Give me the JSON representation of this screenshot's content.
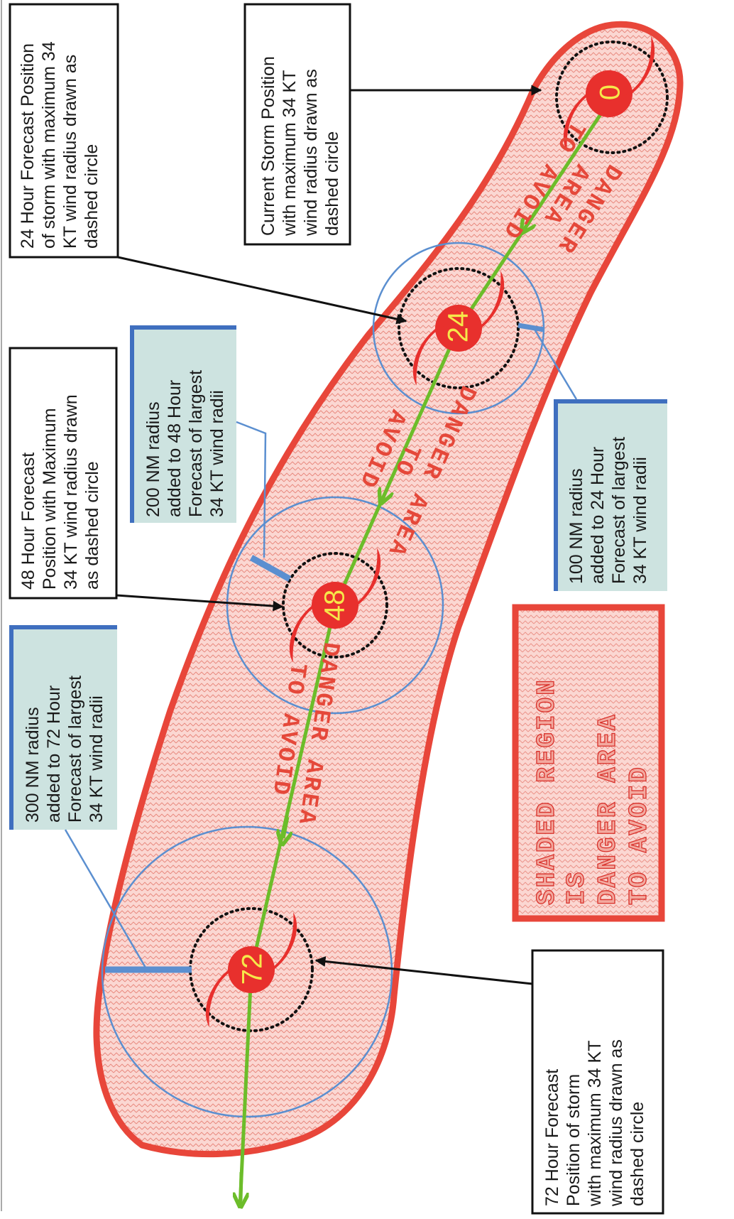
{
  "callouts": {
    "current": [
      "Current Storm Position",
      "with maximum 34 KT",
      "wind radius drawn as",
      "dashed  circle"
    ],
    "h24": [
      "24 Hour Forecast Position",
      "of storm with maximum 34",
      "KT wind radius drawn as",
      "dashed  circle"
    ],
    "h48": [
      "48 Hour Forecast",
      "Position with Maximum",
      "34 KT wind radius drawn",
      "as dashed  circle"
    ],
    "h72": [
      "72 Hour Forecast",
      "Position of storm",
      "with maximum 34 KT",
      "wind radius drawn as",
      "dashed  circle"
    ]
  },
  "radius_notes": {
    "r100": [
      "100 NM radius",
      "added to 24 Hour",
      "Forecast of largest",
      "34 KT wind radii"
    ],
    "r200": [
      "200 NM radius",
      "added to 48 Hour",
      "Forecast of largest",
      "34 KT wind radii"
    ],
    "r300": [
      "300 NM radius",
      "added to 72 Hour",
      "Forecast of largest",
      "34 KT wind radii"
    ]
  },
  "danger_labels": [
    [
      "DANGER",
      "AREA",
      "TO AVOID"
    ],
    [
      "DANGER AREA",
      "TO",
      "AVOID"
    ],
    [
      "DANGER AREA",
      "TO AVOID"
    ]
  ],
  "storm_numbers": [
    "0",
    "24",
    "48",
    "72"
  ],
  "legend": [
    "SHADED REGION",
    "IS",
    "DANGER AREA",
    "TO AVOID"
  ],
  "colors": {
    "danger_fill": "#f8c6c0",
    "danger_outline": "#e8463a",
    "track": "#6cbd2a",
    "radius_circle": "#5b8fd0",
    "callout_blue_fill": "#cde3e0",
    "callout_blue_edge": "#3f6fbf",
    "storm_symbol": "#e8302d",
    "storm_number": "#f6e84a"
  },
  "icons": {
    "storm": "hurricane-symbol-icon",
    "arrow": "pointer-arrow-icon"
  }
}
